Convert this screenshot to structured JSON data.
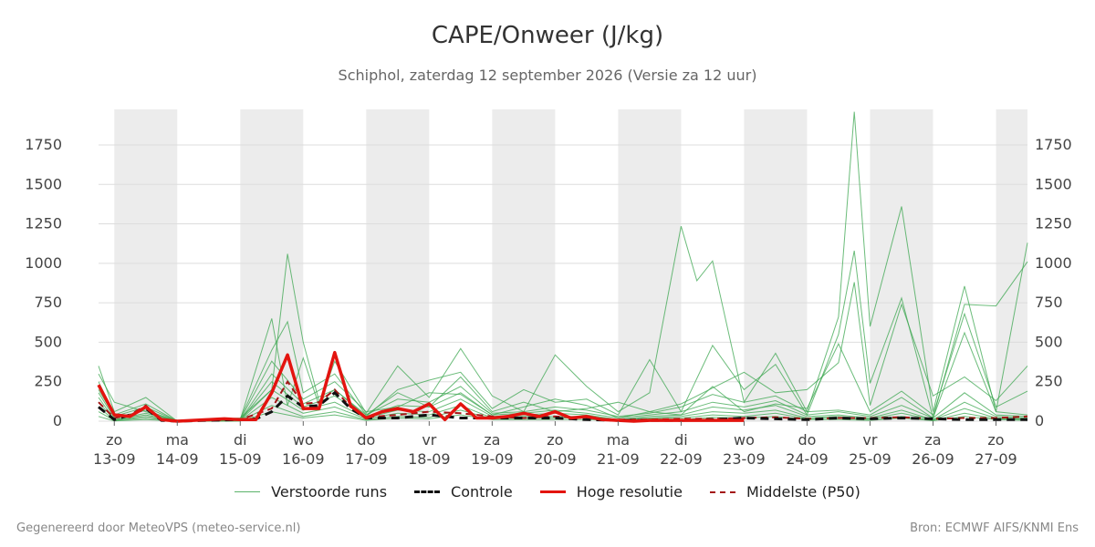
{
  "title": "CAPE/Onweer (J/kg)",
  "subtitle": "Schiphol, zaterdag 12 september 2026 (Versie za 12 uur)",
  "legend": {
    "runs": "Verstoorde runs",
    "control": "Controle",
    "high_res": "Hoge resolutie",
    "median": "Middelste (P50)"
  },
  "footer": {
    "left": "Gegenereerd door MeteoVPS (meteo-service.nl)",
    "right": "Bron: ECMWF AIFS/KNMI Ens"
  },
  "colors": {
    "runs": "#3aa64e",
    "control": "#111111",
    "high_res": "#e3140f",
    "median": "#a31515",
    "weekend_band": "#ececec",
    "grid": "#dddddd"
  },
  "chart_data": {
    "type": "line",
    "title": "CAPE/Onweer (J/kg)",
    "ylim": [
      0,
      1975
    ],
    "xlim": [
      12.75,
      27.5
    ],
    "yticks": [
      0,
      250,
      500,
      750,
      1000,
      1250,
      1500,
      1750
    ],
    "xticks": [
      {
        "x": 13,
        "day": "zo",
        "date": "13-09"
      },
      {
        "x": 14,
        "day": "ma",
        "date": "14-09"
      },
      {
        "x": 15,
        "day": "di",
        "date": "15-09"
      },
      {
        "x": 16,
        "day": "wo",
        "date": "16-09"
      },
      {
        "x": 17,
        "day": "do",
        "date": "17-09"
      },
      {
        "x": 18,
        "day": "vr",
        "date": "18-09"
      },
      {
        "x": 19,
        "day": "za",
        "date": "19-09"
      },
      {
        "x": 20,
        "day": "zo",
        "date": "20-09"
      },
      {
        "x": 21,
        "day": "ma",
        "date": "21-09"
      },
      {
        "x": 22,
        "day": "di",
        "date": "22-09"
      },
      {
        "x": 23,
        "day": "wo",
        "date": "23-09"
      },
      {
        "x": 24,
        "day": "do",
        "date": "24-09"
      },
      {
        "x": 25,
        "day": "vr",
        "date": "25-09"
      },
      {
        "x": 26,
        "day": "za",
        "date": "26-09"
      },
      {
        "x": 27,
        "day": "zo",
        "date": "27-09"
      }
    ],
    "shaded_bands": [
      [
        13,
        14
      ],
      [
        15,
        16
      ],
      [
        17,
        18
      ],
      [
        19,
        20
      ],
      [
        21,
        22
      ],
      [
        23,
        24
      ],
      [
        25,
        26
      ],
      [
        27,
        27.5
      ]
    ],
    "grid": true,
    "legend_position": "bottom",
    "series": [
      {
        "name": "Hoge resolutie",
        "style": "solid-red",
        "x": [
          12.75,
          13,
          13.25,
          13.5,
          13.75,
          14,
          14.25,
          14.5,
          14.75,
          15,
          15.25,
          15.5,
          15.75,
          16,
          16.25,
          16.5,
          16.75,
          17,
          17.25,
          17.5,
          17.75,
          18,
          18.25,
          18.5,
          18.75,
          19,
          19.25,
          19.5,
          19.75,
          20,
          20.25,
          20.5,
          20.75,
          21,
          21.25,
          21.5,
          21.75,
          22,
          22.25,
          22.5,
          22.75,
          23
        ],
        "y": [
          230,
          40,
          30,
          90,
          10,
          0,
          5,
          10,
          15,
          10,
          10,
          180,
          420,
          80,
          80,
          435,
          100,
          20,
          60,
          80,
          60,
          110,
          10,
          110,
          20,
          20,
          30,
          50,
          30,
          60,
          20,
          30,
          10,
          5,
          0,
          5,
          5,
          5,
          5,
          5,
          5,
          5
        ]
      },
      {
        "name": "Controle",
        "style": "dashed-black",
        "x": [
          12.75,
          13,
          13.25,
          13.5,
          13.75,
          14,
          14.5,
          15,
          15.25,
          15.5,
          15.75,
          16,
          16.25,
          16.5,
          16.75,
          17,
          17.5,
          18,
          18.5,
          19,
          19.5,
          20,
          20.5,
          21,
          21.5,
          22,
          22.5,
          23,
          23.5,
          24,
          24.5,
          25,
          25.5,
          26,
          26.5,
          27,
          27.5
        ],
        "y": [
          90,
          10,
          40,
          80,
          5,
          0,
          5,
          10,
          15,
          60,
          160,
          90,
          100,
          180,
          80,
          20,
          20,
          40,
          20,
          20,
          20,
          20,
          10,
          5,
          5,
          5,
          10,
          20,
          15,
          10,
          20,
          15,
          20,
          15,
          10,
          10,
          10
        ]
      },
      {
        "name": "Middelste (P50)",
        "style": "dashed-darkred",
        "x": [
          12.75,
          13,
          13.25,
          13.5,
          13.75,
          14,
          14.5,
          15,
          15.5,
          15.75,
          16,
          16.25,
          16.5,
          16.75,
          17,
          17.5,
          18,
          18.5,
          19,
          19.5,
          20,
          20.5,
          21,
          21.5,
          22,
          22.5,
          23,
          23.5,
          24,
          24.5,
          25,
          25.5,
          26,
          26.5,
          27,
          27.5
        ],
        "y": [
          120,
          20,
          40,
          100,
          5,
          0,
          5,
          10,
          80,
          250,
          110,
          120,
          200,
          90,
          25,
          40,
          60,
          50,
          30,
          20,
          30,
          20,
          10,
          10,
          15,
          15,
          20,
          25,
          15,
          20,
          20,
          25,
          15,
          20,
          20,
          30
        ]
      },
      {
        "name": "run",
        "x": [
          12.75,
          13,
          13.5,
          14,
          15,
          15.5,
          15.75,
          16,
          16.25,
          16.5,
          17,
          17.5,
          18,
          18.5,
          19,
          19.5,
          20,
          20.5,
          21,
          21.5,
          22,
          22.25,
          22.5,
          23,
          23.5,
          24,
          24.5,
          24.75,
          25,
          25.5,
          26,
          26.5,
          27,
          27.5
        ],
        "y": [
          350,
          60,
          150,
          0,
          10,
          650,
          100,
          400,
          100,
          380,
          50,
          350,
          150,
          460,
          160,
          60,
          420,
          220,
          60,
          180,
          1235,
          890,
          1015,
          120,
          430,
          60,
          660,
          1960,
          600,
          1360,
          60,
          855,
          60,
          1130
        ]
      },
      {
        "name": "run",
        "x": [
          12.75,
          13,
          13.5,
          14,
          15,
          15.5,
          15.75,
          16,
          16.25,
          16.5,
          17,
          17.5,
          18,
          18.5,
          19,
          19.5,
          20,
          20.5,
          21,
          21.5,
          22,
          22.5,
          23,
          23.5,
          24,
          24.5,
          24.75,
          25,
          25.5,
          26,
          26.5,
          27,
          27.5
        ],
        "y": [
          300,
          120,
          60,
          0,
          20,
          200,
          1060,
          500,
          130,
          200,
          30,
          200,
          260,
          310,
          80,
          200,
          120,
          140,
          40,
          390,
          60,
          480,
          200,
          360,
          40,
          550,
          1080,
          240,
          780,
          20,
          740,
          730,
          1010
        ]
      },
      {
        "name": "run",
        "x": [
          12.75,
          13,
          13.5,
          14,
          15,
          15.5,
          15.75,
          16,
          16.5,
          17,
          17.5,
          18,
          18.5,
          19,
          19.5,
          20,
          20.5,
          21,
          21.5,
          22,
          22.5,
          23,
          23.5,
          24,
          24.5,
          24.75,
          25,
          25.5,
          26,
          26.5,
          27,
          27.5
        ],
        "y": [
          250,
          40,
          110,
          0,
          15,
          450,
          630,
          180,
          300,
          40,
          180,
          90,
          280,
          60,
          120,
          60,
          80,
          120,
          60,
          110,
          210,
          310,
          180,
          200,
          370,
          880,
          100,
          740,
          160,
          280,
          130,
          350
        ]
      },
      {
        "name": "run",
        "x": [
          12.75,
          13,
          13.5,
          14,
          15,
          15.5,
          16,
          16.5,
          17,
          17.5,
          18,
          18.5,
          19,
          19.5,
          20,
          20.5,
          21,
          21.5,
          22,
          22.5,
          23,
          23.5,
          24,
          24.5,
          25,
          25.5,
          26,
          26.5,
          27,
          27.5
        ],
        "y": [
          200,
          30,
          90,
          0,
          10,
          380,
          140,
          250,
          60,
          90,
          180,
          170,
          40,
          90,
          140,
          100,
          20,
          60,
          40,
          220,
          60,
          110,
          80,
          490,
          60,
          190,
          40,
          680,
          90,
          190
        ]
      },
      {
        "name": "run",
        "x": [
          12.75,
          13,
          13.5,
          14,
          15,
          15.5,
          16,
          16.5,
          17,
          17.5,
          18,
          18.5,
          19,
          19.5,
          20,
          20.5,
          21,
          21.5,
          22,
          22.5,
          23,
          23.5,
          24,
          24.5,
          25,
          25.5,
          26,
          26.5,
          27,
          27.5
        ],
        "y": [
          180,
          20,
          70,
          0,
          5,
          300,
          110,
          200,
          40,
          140,
          120,
          220,
          50,
          60,
          90,
          70,
          30,
          50,
          90,
          170,
          120,
          160,
          60,
          70,
          40,
          150,
          20,
          560,
          60,
          40
        ]
      },
      {
        "name": "run",
        "x": [
          12.75,
          13,
          13.5,
          14,
          15,
          15.5,
          16,
          16.5,
          17,
          17.5,
          18,
          18.5,
          19,
          19.5,
          20,
          20.5,
          21,
          21.5,
          22,
          22.5,
          23,
          23.5,
          24,
          24.5,
          25,
          25.5,
          26,
          26.5,
          27,
          27.5
        ],
        "y": [
          150,
          10,
          50,
          0,
          5,
          250,
          90,
          160,
          30,
          100,
          90,
          180,
          40,
          50,
          70,
          50,
          20,
          40,
          60,
          120,
          90,
          130,
          40,
          60,
          30,
          100,
          20,
          180,
          40,
          30
        ]
      },
      {
        "name": "run",
        "x": [
          12.75,
          13,
          13.5,
          14,
          15,
          15.5,
          16,
          16.5,
          17,
          17.5,
          18,
          18.5,
          19,
          19.5,
          20,
          20.5,
          21,
          21.5,
          22,
          22.5,
          23,
          23.5,
          24,
          24.5,
          25,
          25.5,
          26,
          26.5,
          27,
          27.5
        ],
        "y": [
          120,
          10,
          40,
          0,
          5,
          200,
          70,
          120,
          20,
          70,
          60,
          140,
          30,
          40,
          50,
          40,
          10,
          30,
          40,
          90,
          70,
          100,
          30,
          40,
          20,
          70,
          10,
          120,
          30,
          20
        ]
      },
      {
        "name": "run",
        "x": [
          12.75,
          13,
          13.5,
          14,
          15,
          15.5,
          16,
          16.5,
          17,
          17.5,
          18,
          18.5,
          19,
          19.5,
          20,
          20.5,
          21,
          21.5,
          22,
          22.5,
          23,
          23.5,
          24,
          24.5,
          25,
          25.5,
          26,
          26.5,
          27,
          27.5
        ],
        "y": [
          90,
          5,
          30,
          0,
          3,
          150,
          50,
          90,
          15,
          50,
          40,
          100,
          20,
          30,
          30,
          30,
          10,
          20,
          30,
          60,
          50,
          70,
          20,
          30,
          15,
          50,
          10,
          80,
          20,
          15
        ]
      },
      {
        "name": "run",
        "x": [
          12.75,
          13,
          13.5,
          14,
          15,
          15.5,
          16,
          16.5,
          17,
          17.5,
          18,
          18.5,
          19,
          19.5,
          20,
          20.5,
          21,
          21.5,
          22,
          22.5,
          23,
          23.5,
          24,
          24.5,
          25,
          25.5,
          26,
          26.5,
          27,
          27.5
        ],
        "y": [
          60,
          5,
          20,
          0,
          2,
          100,
          30,
          60,
          10,
          30,
          25,
          70,
          15,
          20,
          20,
          20,
          5,
          15,
          20,
          40,
          30,
          50,
          15,
          20,
          10,
          30,
          5,
          50,
          15,
          10
        ]
      },
      {
        "name": "run",
        "x": [
          12.75,
          13,
          13.5,
          14,
          15,
          15.5,
          16,
          16.5,
          17,
          17.5,
          18,
          18.5,
          19,
          19.5,
          20,
          20.5,
          21,
          21.5,
          22,
          22.5,
          23,
          23.5,
          24,
          24.5,
          25,
          25.5,
          26,
          26.5,
          27,
          27.5
        ],
        "y": [
          30,
          2,
          10,
          0,
          1,
          60,
          20,
          40,
          5,
          20,
          15,
          40,
          10,
          10,
          10,
          10,
          3,
          10,
          10,
          25,
          20,
          30,
          10,
          10,
          5,
          20,
          3,
          30,
          10,
          5
        ]
      }
    ]
  }
}
